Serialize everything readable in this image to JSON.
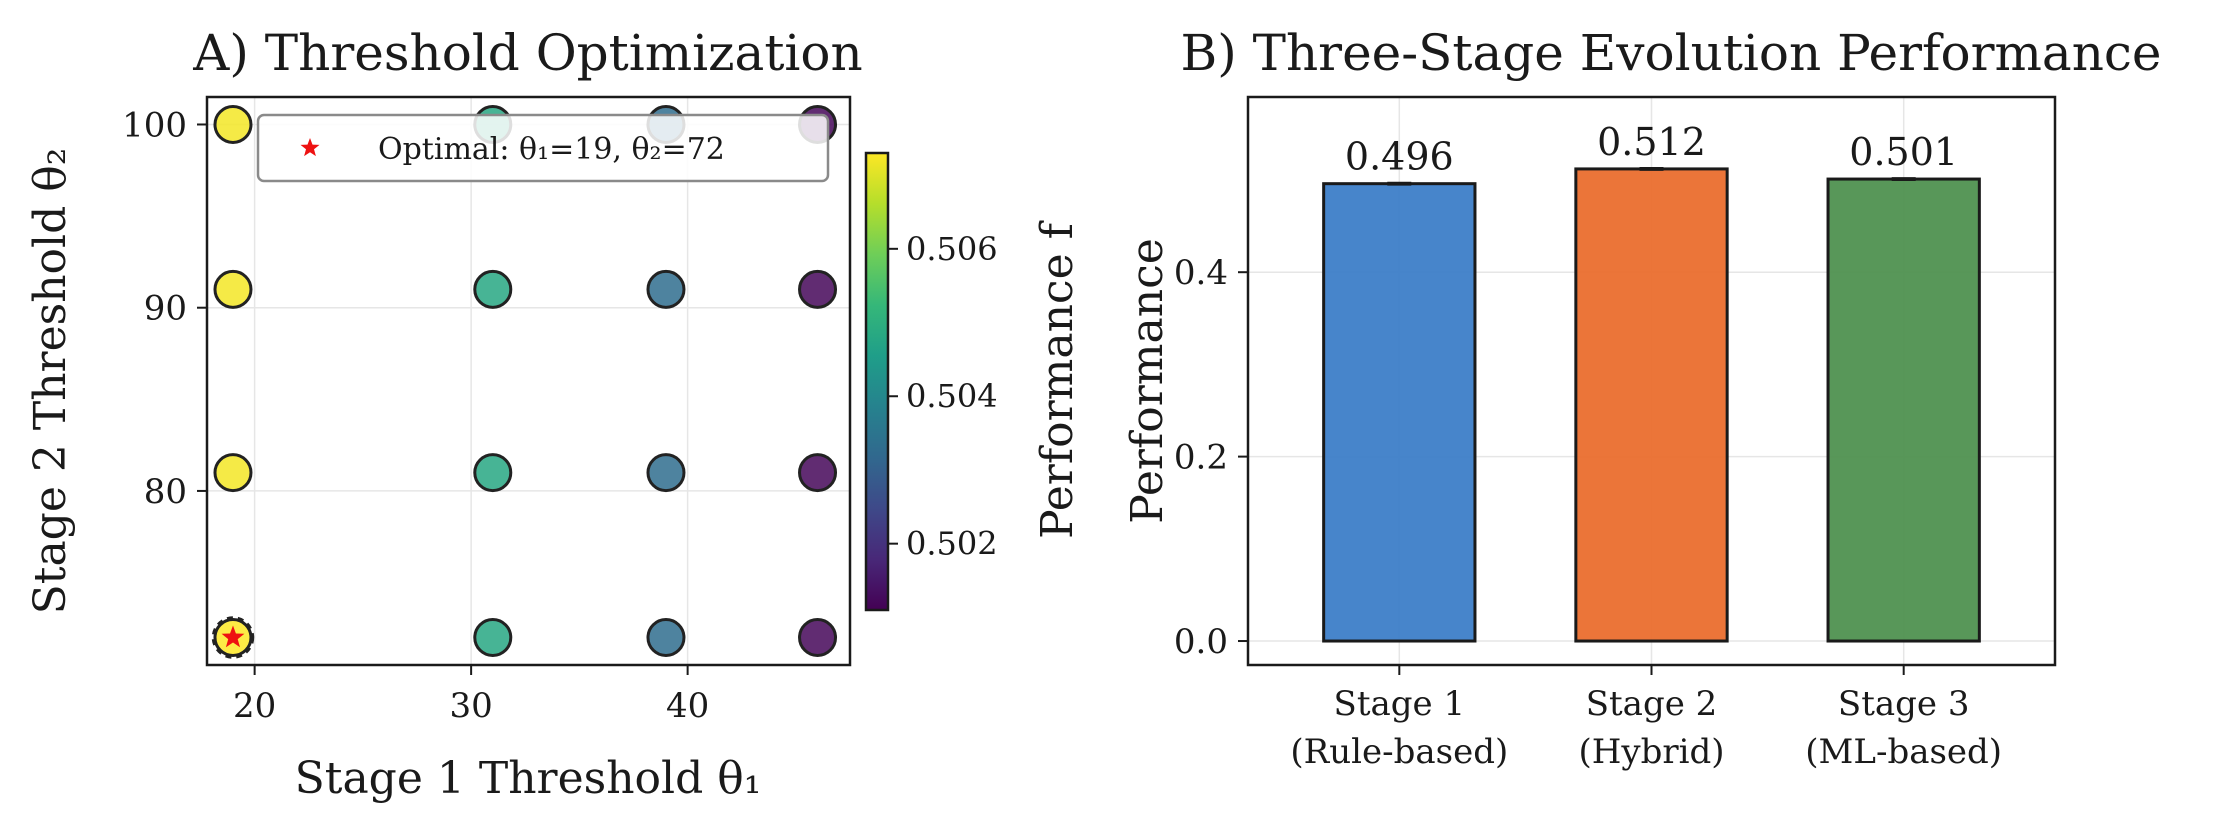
{
  "colors": {
    "viridis": [
      "#440154",
      "#482878",
      "#3e4989",
      "#31688e",
      "#26828e",
      "#1f9e89",
      "#35b779",
      "#6ece58",
      "#b5de2b",
      "#fde725"
    ],
    "bar_colors": [
      "#3d7ec8",
      "#ea6e2e",
      "#4f9150"
    ],
    "optimal_marker": "#ee1111",
    "grid": "#e6e6e6"
  },
  "chart_data": [
    {
      "type": "scatter",
      "title": "A) Threshold Optimization",
      "xlabel": "Stage 1 Threshold θ₁",
      "ylabel": "Stage 2 Threshold θ₂",
      "xlim": [
        17.8,
        47.5
      ],
      "ylim": [
        70.5,
        101.5
      ],
      "xticks": [
        20,
        30,
        40
      ],
      "yticks": [
        80,
        90,
        100
      ],
      "grid": true,
      "colorbar": {
        "label": "Performance f",
        "range": [
          0.5011,
          0.5073
        ],
        "ticks": [
          0.502,
          0.504,
          0.506
        ],
        "tick_labels": [
          "0.502",
          "0.504",
          "0.506"
        ],
        "colormap": "viridis"
      },
      "points": [
        {
          "x": 19,
          "y": 100,
          "f": 0.5072
        },
        {
          "x": 19,
          "y": 91,
          "f": 0.5072
        },
        {
          "x": 19,
          "y": 81,
          "f": 0.5072
        },
        {
          "x": 19,
          "y": 72,
          "f": 0.5073
        },
        {
          "x": 31,
          "y": 100,
          "f": 0.5048
        },
        {
          "x": 31,
          "y": 91,
          "f": 0.5048
        },
        {
          "x": 31,
          "y": 81,
          "f": 0.5048
        },
        {
          "x": 31,
          "y": 72,
          "f": 0.5048
        },
        {
          "x": 39,
          "y": 100,
          "f": 0.5033
        },
        {
          "x": 39,
          "y": 91,
          "f": 0.5033
        },
        {
          "x": 39,
          "y": 81,
          "f": 0.5033
        },
        {
          "x": 39,
          "y": 72,
          "f": 0.5033
        },
        {
          "x": 46,
          "y": 100,
          "f": 0.5012
        },
        {
          "x": 46,
          "y": 91,
          "f": 0.5012
        },
        {
          "x": 46,
          "y": 81,
          "f": 0.5012
        },
        {
          "x": 46,
          "y": 72,
          "f": 0.5012
        }
      ],
      "optimal": {
        "x": 19,
        "y": 72
      },
      "legend": {
        "placement": "top-right",
        "entries": [
          "Optimal: θ₁=19, θ₂=72"
        ]
      }
    },
    {
      "type": "bar",
      "title": "B) Three-Stage Evolution Performance",
      "xlabel": "",
      "ylabel": "Performance",
      "ylim": [
        -0.026,
        0.59
      ],
      "yticks": [
        0.0,
        0.2,
        0.4
      ],
      "ytick_labels": [
        "0.0",
        "0.2",
        "0.4"
      ],
      "grid": true,
      "categories": [
        [
          "Stage 1",
          "(Rule-based)"
        ],
        [
          "Stage 2",
          "(Hybrid)"
        ],
        [
          "Stage 3",
          "(ML-based)"
        ]
      ],
      "values": [
        0.496,
        0.512,
        0.501
      ],
      "value_labels": [
        "0.496",
        "0.512",
        "0.501"
      ],
      "errors": [
        0.001,
        0.001,
        0.001
      ]
    }
  ]
}
